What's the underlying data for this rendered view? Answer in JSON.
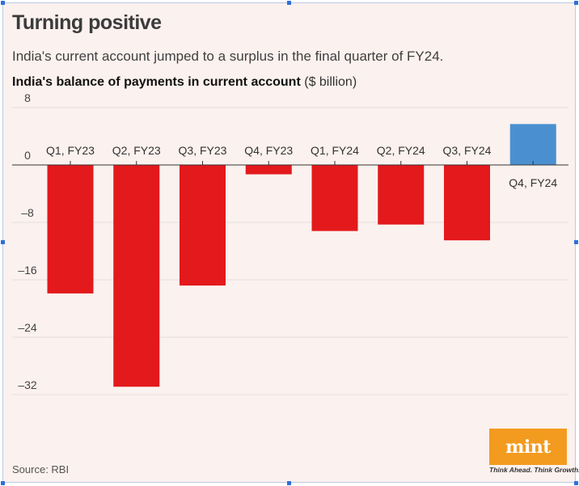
{
  "header": {
    "title": "Turning positive",
    "subtitle": "India's current account jumped to a surplus in the final quarter of FY24."
  },
  "chart_data": {
    "type": "bar",
    "title": "India's balance of payments in current account",
    "unit": "($ billion)",
    "categories": [
      "Q1, FY23",
      "Q2, FY23",
      "Q3, FY23",
      "Q4, FY23",
      "Q1, FY24",
      "Q2, FY24",
      "Q3, FY24",
      "Q4, FY24"
    ],
    "values": [
      -17.9,
      -30.9,
      -16.8,
      -1.3,
      -9.2,
      -8.3,
      -10.5,
      5.7
    ],
    "yticks": [
      8,
      0,
      -8,
      -16,
      -24,
      -32
    ],
    "ylim": [
      -36,
      8
    ],
    "grid": true,
    "colors": {
      "negative": "#e3191b",
      "positive": "#4a90d0"
    }
  },
  "footer": {
    "source": "Source: RBI",
    "logo_text": "mint",
    "tagline": "Think Ahead. Think Growth."
  }
}
